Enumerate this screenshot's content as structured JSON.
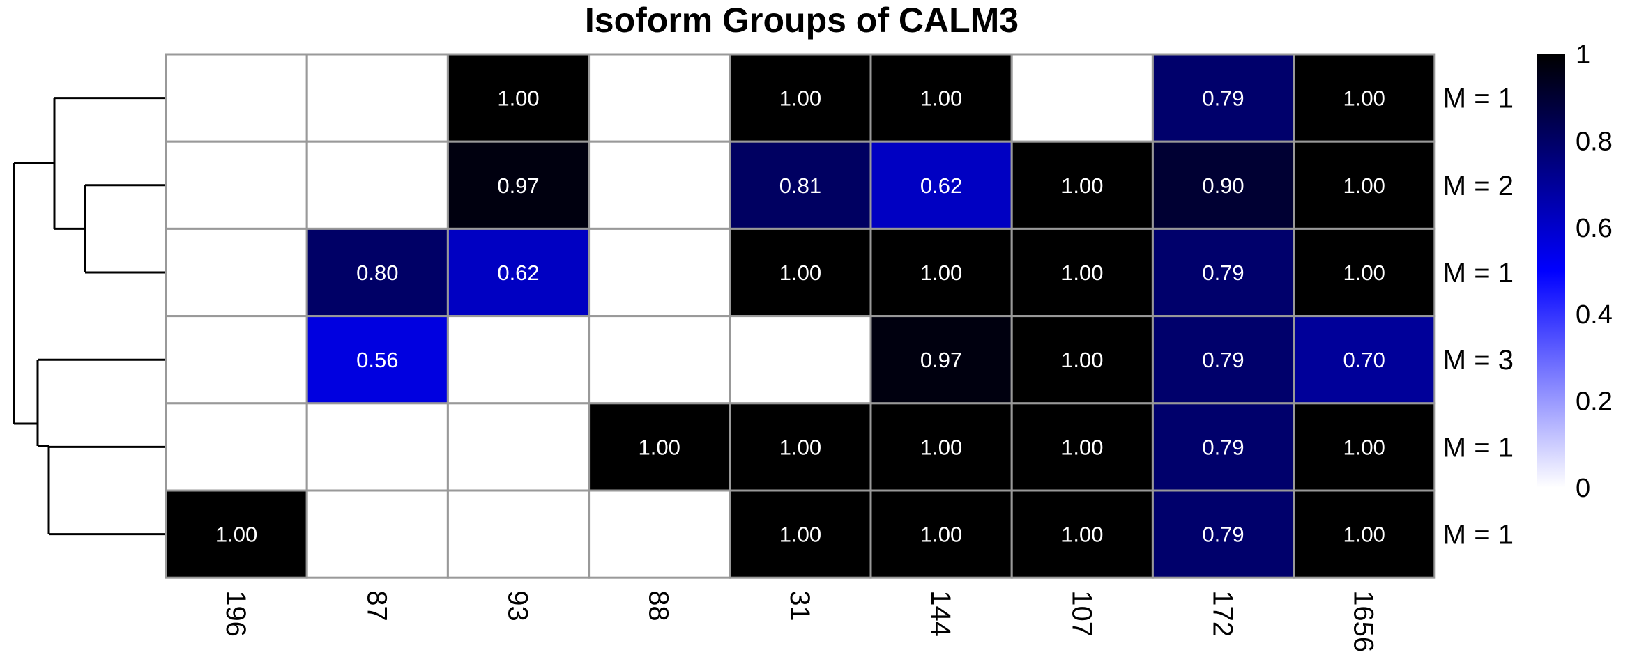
{
  "chart_data": {
    "type": "heatmap",
    "title": "Isoform Groups of CALM3",
    "columns": [
      "196",
      "87",
      "93",
      "88",
      "31",
      "144",
      "107",
      "172",
      "1656"
    ],
    "rows": [
      "M = 1",
      "M = 2",
      "M = 1",
      "M = 3",
      "M = 1",
      "M = 1"
    ],
    "values": [
      [
        null,
        null,
        1.0,
        null,
        1.0,
        1.0,
        null,
        0.79,
        1.0
      ],
      [
        null,
        null,
        0.97,
        null,
        0.81,
        0.62,
        1.0,
        0.9,
        1.0
      ],
      [
        null,
        0.8,
        0.62,
        null,
        1.0,
        1.0,
        1.0,
        0.79,
        1.0
      ],
      [
        null,
        0.56,
        null,
        null,
        null,
        0.97,
        1.0,
        0.79,
        0.7
      ],
      [
        null,
        null,
        null,
        1.0,
        1.0,
        1.0,
        1.0,
        0.79,
        1.0
      ],
      [
        1.0,
        null,
        null,
        null,
        1.0,
        1.0,
        1.0,
        0.79,
        1.0
      ]
    ],
    "value_labels": [
      [
        "",
        "",
        "1.00",
        "",
        "1.00",
        "1.00",
        "",
        "0.79",
        "1.00"
      ],
      [
        "",
        "",
        "0.97",
        "",
        "0.81",
        "0.62",
        "1.00",
        "0.90",
        "1.00"
      ],
      [
        "",
        "0.80",
        "0.62",
        "",
        "1.00",
        "1.00",
        "1.00",
        "0.79",
        "1.00"
      ],
      [
        "",
        "0.56",
        "",
        "",
        "",
        "0.97",
        "1.00",
        "0.79",
        "0.70"
      ],
      [
        "",
        "",
        "",
        "1.00",
        "1.00",
        "1.00",
        "1.00",
        "0.79",
        "1.00"
      ],
      [
        "1.00",
        "",
        "",
        "",
        "1.00",
        "1.00",
        "1.00",
        "0.79",
        "1.00"
      ]
    ],
    "color_scale": {
      "min": 0,
      "max": 1,
      "stops": [
        {
          "value": 0,
          "color": "#ffffff"
        },
        {
          "value": 0.5,
          "color": "#0000ff"
        },
        {
          "value": 1,
          "color": "#000000"
        }
      ],
      "ticks": [
        "0",
        "0.2",
        "0.4",
        "0.6",
        "0.8",
        "1"
      ],
      "tick_values": [
        0,
        0.2,
        0.4,
        0.6,
        0.8,
        1
      ]
    },
    "grid_color": "#999999",
    "dendrogram": "left",
    "legend_position": "right"
  }
}
